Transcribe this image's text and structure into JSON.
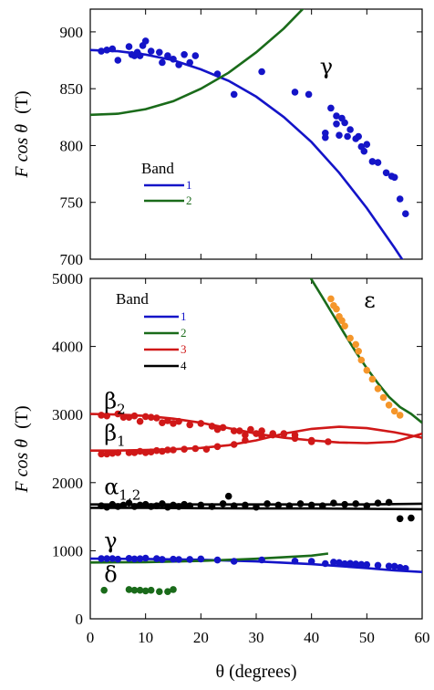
{
  "figure": {
    "x_axis_label": "θ (degrees)",
    "y_axis_label_text": "F cos θ",
    "y_axis_label_unit": "(T)"
  },
  "chart_data": [
    {
      "type": "scatter",
      "panel": "top",
      "xlim": [
        0,
        60
      ],
      "ylim": [
        700,
        920
      ],
      "x_ticks": [
        0,
        10,
        20,
        30,
        40,
        50,
        60
      ],
      "y_ticks": [
        700,
        750,
        800,
        850,
        900
      ],
      "legend": {
        "title": "Band",
        "entries": [
          {
            "label": "1",
            "color": "#1414c8"
          },
          {
            "label": "2",
            "color": "#1a6b1a"
          }
        ]
      },
      "annotations": [
        {
          "text": "γ",
          "x": 41.5,
          "y": 863
        }
      ],
      "curves": [
        {
          "band": "1",
          "color": "#1414c8",
          "x": [
            0,
            5,
            10,
            15,
            20,
            25,
            30,
            35,
            40,
            45,
            50,
            55,
            58
          ],
          "y": [
            884,
            883,
            880,
            875,
            867,
            857,
            843,
            825,
            803,
            776,
            745,
            710,
            688
          ]
        },
        {
          "band": "2",
          "color": "#1a6b1a",
          "x": [
            0,
            5,
            10,
            15,
            20,
            25,
            30,
            35,
            40
          ],
          "y": [
            827,
            828,
            832,
            839,
            850,
            864,
            882,
            903,
            928
          ]
        }
      ],
      "series": [
        {
          "name": "1",
          "color": "#1414c8",
          "x": [
            2,
            3,
            4,
            5,
            7,
            7.5,
            8,
            8.5,
            9,
            9.5,
            10,
            11,
            12.5,
            13,
            14,
            15,
            16,
            17,
            18,
            19,
            23,
            26,
            31,
            37,
            39.5,
            42.5,
            42.5,
            43.5,
            44.5,
            44.5,
            45,
            45.5,
            46,
            46.5,
            47,
            48,
            48.5,
            49,
            49.5,
            50,
            51,
            52,
            53.5,
            54.5,
            55,
            56,
            57
          ],
          "y": [
            883,
            884,
            885,
            875,
            887,
            880,
            879,
            882,
            879,
            888,
            892,
            883,
            882,
            873,
            879,
            876,
            871,
            880,
            873,
            879,
            863,
            845,
            865,
            847,
            845,
            811,
            807,
            833,
            826,
            819,
            809,
            824,
            820,
            808,
            814,
            806,
            808,
            799,
            795,
            801,
            786,
            785,
            776,
            773,
            772,
            753,
            740
          ]
        }
      ]
    },
    {
      "type": "scatter",
      "panel": "bottom",
      "xlim": [
        0,
        60
      ],
      "ylim": [
        0,
        5000
      ],
      "x_ticks": [
        0,
        10,
        20,
        30,
        40,
        50,
        60
      ],
      "y_ticks": [
        0,
        1000,
        2000,
        3000,
        4000,
        5000
      ],
      "legend": {
        "title": "Band",
        "entries": [
          {
            "label": "1",
            "color": "#1414c8"
          },
          {
            "label": "2",
            "color": "#1a6b1a"
          },
          {
            "label": "3",
            "color": "#d01818"
          },
          {
            "label": "4",
            "color": "#000000"
          }
        ]
      },
      "annotations": [
        {
          "text": "ε",
          "x": 49.5,
          "y": 4570
        },
        {
          "text": "β",
          "sub": "2",
          "x": 2.5,
          "y": 3090
        },
        {
          "text": "β",
          "sub": "1",
          "x": 2.5,
          "y": 2620
        },
        {
          "text": "α",
          "sub": "1,2",
          "x": 2.5,
          "y": 1830
        },
        {
          "text": "γ",
          "x": 2.5,
          "y": 1040
        },
        {
          "text": "δ",
          "x": 2.5,
          "y": 540
        }
      ],
      "curves": [
        {
          "band": "2",
          "color": "#1a6b1a",
          "x": [
            39.5,
            42,
            44,
            46,
            48,
            50,
            52,
            54,
            56,
            58,
            60
          ],
          "y": [
            5050,
            4720,
            4450,
            4180,
            3920,
            3680,
            3460,
            3260,
            3110,
            3010,
            2880
          ]
        },
        {
          "band": "3",
          "color": "#d01818",
          "x": [
            0,
            5,
            10,
            15,
            20,
            25,
            30,
            35,
            40,
            45,
            50,
            55,
            60
          ],
          "y": [
            3010,
            3000,
            2980,
            2940,
            2880,
            2800,
            2720,
            2660,
            2620,
            2590,
            2580,
            2600,
            2720
          ]
        },
        {
          "band": "3",
          "color": "#d01818",
          "x": [
            0,
            5,
            10,
            15,
            20,
            25,
            30,
            35,
            40,
            45,
            50,
            55,
            60
          ],
          "y": [
            2470,
            2470,
            2480,
            2490,
            2510,
            2550,
            2620,
            2720,
            2790,
            2820,
            2800,
            2740,
            2660
          ]
        },
        {
          "band": "4",
          "color": "#000000",
          "x": [
            0,
            10,
            20,
            30,
            40,
            50,
            60
          ],
          "y": [
            1680,
            1680,
            1680,
            1680,
            1680,
            1680,
            1690
          ]
        },
        {
          "band": "4",
          "color": "#000000",
          "x": [
            0,
            10,
            20,
            30,
            40,
            50,
            60
          ],
          "y": [
            1630,
            1630,
            1625,
            1620,
            1620,
            1615,
            1610
          ]
        },
        {
          "band": "1",
          "color": "#1414c8",
          "x": [
            0,
            10,
            20,
            30,
            40,
            50,
            55,
            60
          ],
          "y": [
            884,
            880,
            867,
            843,
            803,
            745,
            710,
            688
          ]
        },
        {
          "band": "2",
          "color": "#1a6b1a",
          "x": [
            0,
            10,
            20,
            30,
            40,
            43
          ],
          "y": [
            827,
            832,
            850,
            882,
            928,
            958
          ]
        }
      ],
      "series": [
        {
          "name": "ε",
          "color": "#f5962a",
          "x": [
            43.5,
            44,
            44.5,
            45,
            45.5,
            46,
            47,
            48,
            48.5,
            49,
            50,
            51,
            52,
            53,
            54,
            55,
            56
          ],
          "y": [
            4700,
            4600,
            4550,
            4440,
            4380,
            4300,
            4120,
            4030,
            3930,
            3800,
            3650,
            3520,
            3380,
            3250,
            3140,
            3050,
            2990
          ]
        },
        {
          "name": "β2",
          "color": "#d01818",
          "x": [
            2,
            3,
            5,
            6,
            7,
            8,
            9,
            10,
            11,
            12,
            13,
            14,
            15,
            16,
            18,
            20,
            22,
            23,
            24,
            26,
            27,
            28,
            29,
            30,
            31,
            33,
            35,
            37,
            40,
            43
          ],
          "y": [
            2990,
            2980,
            3010,
            2960,
            2960,
            2980,
            2900,
            2970,
            2960,
            2950,
            2880,
            2910,
            2870,
            2900,
            2850,
            2870,
            2830,
            2780,
            2810,
            2760,
            2760,
            2700,
            2780,
            2720,
            2760,
            2700,
            2720,
            2650,
            2600,
            2600
          ]
        },
        {
          "name": "β1",
          "color": "#d01818",
          "x": [
            2,
            3,
            4,
            5,
            7,
            8,
            9,
            10,
            11,
            12,
            13,
            14,
            15,
            17,
            19,
            21,
            23,
            26,
            28,
            31,
            33,
            35,
            37,
            40
          ],
          "y": [
            2420,
            2420,
            2430,
            2440,
            2440,
            2440,
            2460,
            2440,
            2450,
            2470,
            2460,
            2480,
            2480,
            2490,
            2500,
            2490,
            2530,
            2560,
            2620,
            2680,
            2720,
            2710,
            2700,
            2620
          ]
        },
        {
          "name": "α1,2",
          "color": "#000000",
          "x": [
            2,
            3,
            4,
            5,
            6,
            7,
            8,
            9,
            10,
            11,
            12,
            13,
            14,
            15,
            16,
            17,
            18,
            20,
            22,
            24,
            25,
            26,
            28,
            30,
            32,
            34,
            36,
            38,
            40,
            42,
            44,
            46,
            48,
            50,
            52,
            54,
            56,
            58
          ],
          "y": [
            1660,
            1640,
            1680,
            1650,
            1670,
            1700,
            1650,
            1670,
            1680,
            1650,
            1660,
            1690,
            1640,
            1670,
            1650,
            1680,
            1660,
            1670,
            1650,
            1690,
            1800,
            1660,
            1670,
            1640,
            1690,
            1670,
            1660,
            1690,
            1670,
            1660,
            1700,
            1680,
            1690,
            1660,
            1700,
            1710,
            1470,
            1480
          ]
        },
        {
          "name": "γ",
          "color": "#1414c8",
          "x": [
            2,
            3,
            4,
            5,
            7,
            8,
            9,
            10,
            12,
            13,
            15,
            16,
            18,
            20,
            23,
            26,
            31,
            37,
            40,
            42.5,
            44,
            45,
            46,
            47,
            48,
            49,
            50,
            52,
            54,
            55,
            56,
            57
          ],
          "y": [
            883,
            884,
            885,
            875,
            887,
            880,
            882,
            892,
            883,
            873,
            876,
            871,
            873,
            879,
            863,
            845,
            865,
            847,
            845,
            811,
            833,
            826,
            808,
            814,
            806,
            799,
            795,
            785,
            773,
            772,
            753,
            740
          ]
        },
        {
          "name": "δ",
          "color": "#1a6b1a",
          "x": [
            2.5,
            7,
            8,
            9,
            10,
            11,
            12.5,
            14,
            15
          ],
          "y": [
            420,
            430,
            420,
            420,
            410,
            420,
            400,
            400,
            430
          ]
        }
      ]
    }
  ]
}
